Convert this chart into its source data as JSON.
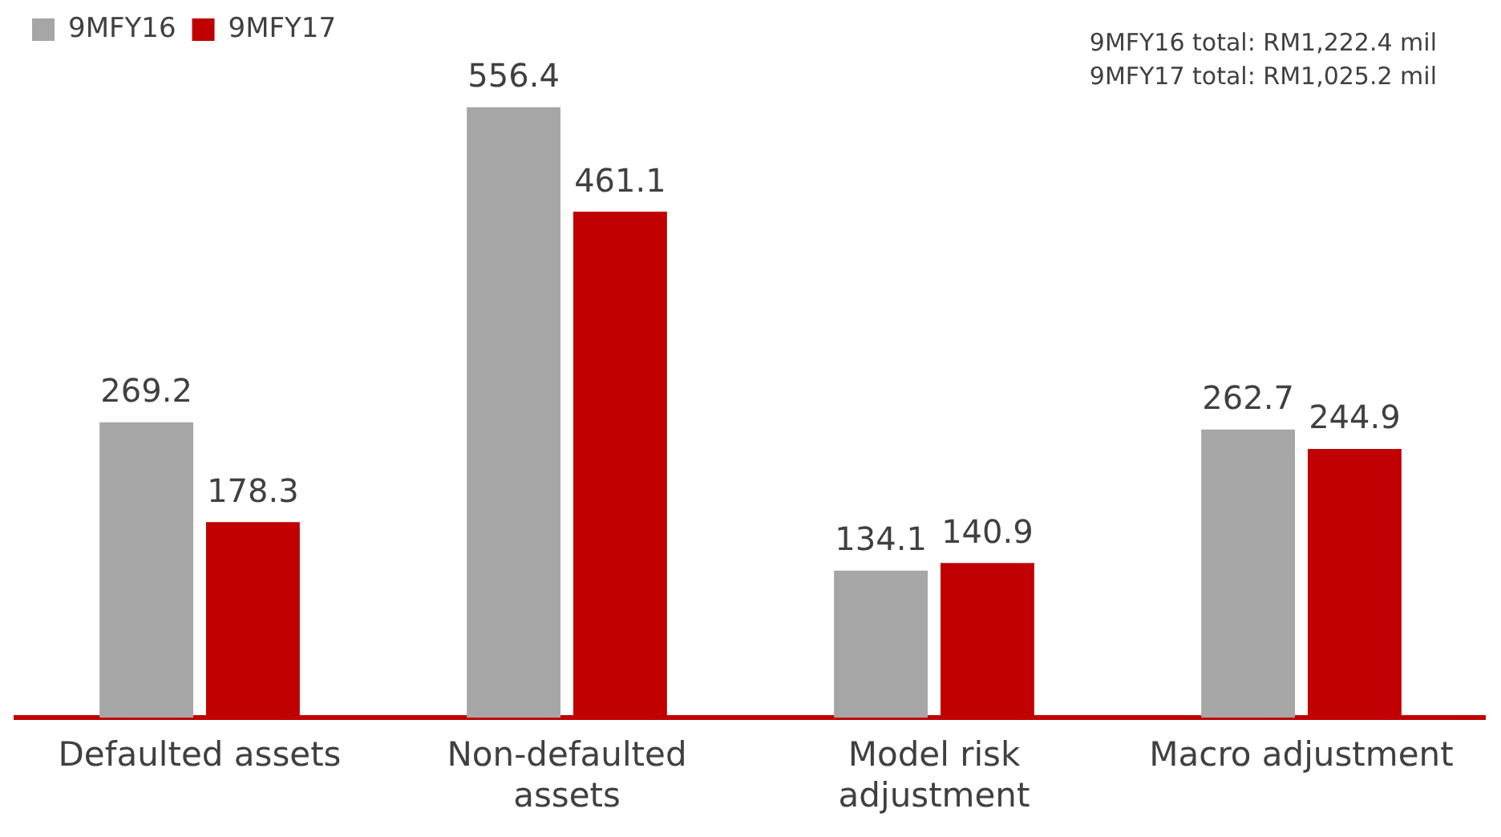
{
  "chart_data": {
    "type": "bar",
    "categories": [
      "Defaulted assets",
      "Non-defaulted assets",
      "Model risk adjustment",
      "Macro adjustment"
    ],
    "series": [
      {
        "name": "9MFY16",
        "color": "#a6a6a6",
        "values": [
          269.2,
          556.4,
          134.1,
          262.7
        ]
      },
      {
        "name": "9MFY17",
        "color": "#c00000",
        "values": [
          178.3,
          461.1,
          140.9,
          244.9
        ]
      }
    ],
    "annotations": [
      "9MFY16 total: RM1,222.4 mil",
      "9MFY17 total: RM1,025.2 mil"
    ],
    "data_labels": true,
    "grid": false,
    "legend": "top left",
    "tick_labels": "x"
  }
}
